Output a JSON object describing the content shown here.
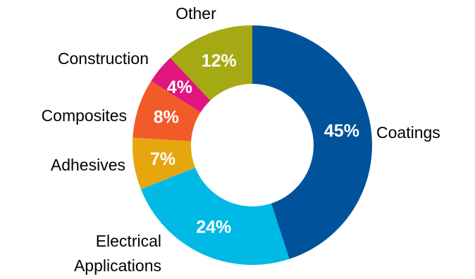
{
  "chart_data": {
    "type": "pie",
    "title": "",
    "legend": "none",
    "slices": [
      {
        "label": "Coatings",
        "label_lines": [
          "Coatings"
        ],
        "value": 45,
        "value_label": "45%",
        "color": "#00539B"
      },
      {
        "label": "Electrical Applications",
        "label_lines": [
          "Electrical",
          "Applications"
        ],
        "value": 24,
        "value_label": "24%",
        "color": "#00B9E4"
      },
      {
        "label": "Adhesives",
        "label_lines": [
          "Adhesives"
        ],
        "value": 7,
        "value_label": "7%",
        "color": "#E6A70E"
      },
      {
        "label": "Composites",
        "label_lines": [
          "Composites"
        ],
        "value": 8,
        "value_label": "8%",
        "color": "#F15A29"
      },
      {
        "label": "Construction",
        "label_lines": [
          "Construction"
        ],
        "value": 4,
        "value_label": "4%",
        "color": "#E0157D"
      },
      {
        "label": "Other",
        "label_lines": [
          "Other"
        ],
        "value": 12,
        "value_label": "12%",
        "color": "#A5A913"
      }
    ]
  }
}
